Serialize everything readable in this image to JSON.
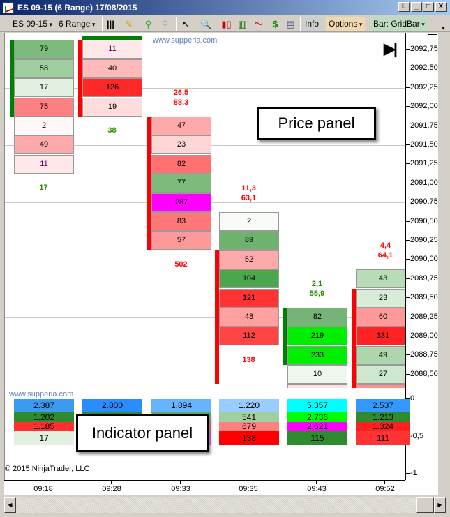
{
  "window": {
    "title": "ES 09-15 (6 Range)  17/08/2015",
    "btn_l": "L",
    "btn_min": "_",
    "btn_max": "□",
    "btn_close": "X"
  },
  "toolbar": {
    "instrument": "ES 09-15",
    "period": "6 Range",
    "info": "Info",
    "options": "Options",
    "bar": "Bar: GridBar",
    "f_button": "F"
  },
  "watermark": "www.supperia.com",
  "copyright": "© 2015 NinjaTrader, LLC",
  "callouts": {
    "price": "Price panel",
    "indicator": "Indicator panel"
  },
  "price_axis": [
    "2092,75",
    "2092,50",
    "2092,25",
    "2092,00",
    "2091,75",
    "2091,50",
    "2091,25",
    "2091,00",
    "2090,75",
    "2090,50",
    "2090,25",
    "2090,00",
    "2089,75",
    "2089,50",
    "2089,25",
    "2089,00",
    "2088,75",
    "2088,50"
  ],
  "indicator_axis": [
    "0",
    "-0,5",
    "-1"
  ],
  "times": [
    "09:18",
    "09:28",
    "09:33",
    "09:35",
    "09:43",
    "09:52"
  ],
  "colors": {
    "green_side": "#008000",
    "red_side": "#ff0000",
    "label_red": "#ff0000",
    "label_green": "#2e8b00"
  },
  "bars": [
    {
      "top": 2092.75,
      "side": "green",
      "sideFrom": 0,
      "sideTo": 3,
      "cells": [
        [
          "79",
          "#7dbb7d"
        ],
        [
          "58",
          "#9fcf9f"
        ],
        [
          "17",
          "#e2f0e2"
        ],
        [
          "75",
          "#ff8080"
        ],
        [
          "2",
          "#fff8f8"
        ],
        [
          "49",
          "#ffaaaa"
        ],
        [
          "11",
          "#ffe8ea"
        ]
      ],
      "above": [],
      "below": "17",
      "labelColor": "green"
    },
    {
      "top": 2092.75,
      "side": "red",
      "sideFrom": 0,
      "sideTo": 3,
      "topStrip": true,
      "cells": [
        [
          "11",
          "#ffe8ea"
        ],
        [
          "40",
          "#ffbbbb"
        ],
        [
          "126",
          "#ff2828"
        ],
        [
          "19",
          "#ffdddd"
        ]
      ],
      "above": [],
      "below": "38",
      "labelColor": "green"
    },
    {
      "top": 2091.75,
      "side": "red",
      "sideFrom": 0,
      "sideTo": 6,
      "cells": [
        [
          "47",
          "#ffaaaa"
        ],
        [
          "23",
          "#ffd6d6"
        ],
        [
          "82",
          "#ff7070"
        ],
        [
          "77",
          "#7dbb7d"
        ],
        [
          "287",
          "#ff00ff"
        ],
        [
          "83",
          "#ff7777"
        ],
        [
          "57",
          "#ff9999"
        ]
      ],
      "above": [
        "26,5",
        "88,3"
      ],
      "below": "502",
      "labelColor": "red"
    },
    {
      "top": 2090.5,
      "side": "red",
      "sideFrom": 2,
      "sideTo": 8,
      "cells": [
        [
          "2",
          "#f8fbf8"
        ],
        [
          "89",
          "#6db26d"
        ],
        [
          "52",
          "#ffaaaa"
        ],
        [
          "104",
          "#4ca64c"
        ],
        [
          "121",
          "#ff3333"
        ],
        [
          "48",
          "#ffa0a0"
        ],
        [
          "112",
          "#ff4444"
        ]
      ],
      "above": [
        "11,3",
        "63,1"
      ],
      "below": "138",
      "labelColor": "red"
    },
    {
      "top": 2089.25,
      "side": "green",
      "sideFrom": 0,
      "sideTo": 2,
      "cells": [
        [
          "82",
          "#76b476"
        ],
        [
          "219",
          "#00ee00"
        ],
        [
          "233",
          "#00ee00"
        ],
        [
          "10",
          "#eef6ee"
        ],
        [
          "",
          "#ffe0e4"
        ]
      ],
      "above": [
        "2,1",
        "55,9"
      ],
      "below": "",
      "labelColor": "green"
    },
    {
      "top": 2089.75,
      "side": "red",
      "sideFrom": 1,
      "sideTo": 7,
      "cells": [
        [
          "43",
          "#b8dcb8"
        ],
        [
          "23",
          "#d8ecd8"
        ],
        [
          "60",
          "#ff9999"
        ],
        [
          "131",
          "#ff2222"
        ],
        [
          "49",
          "#acd6ac"
        ],
        [
          "27",
          "#cfe6cf"
        ],
        [
          "",
          "#ff9090"
        ]
      ],
      "above": [
        "4,4",
        "64,1"
      ],
      "below": "",
      "labelColor": "red"
    }
  ],
  "indicator": [
    [
      [
        "2.387",
        "#3d9bef"
      ],
      [
        "1.202",
        "#2e8b2e"
      ],
      [
        "1.185",
        "#ff3030"
      ],
      [
        "17",
        "#e2f0e2"
      ]
    ],
    [
      [
        "2.800",
        "#2a8cff"
      ],
      [
        "",
        "#2e8b2e"
      ],
      [
        "",
        "#ff3030"
      ],
      [
        "",
        "#ff00ff"
      ]
    ],
    [
      [
        "1.894",
        "#66b3ff"
      ],
      [
        "",
        "#5aaa5a"
      ],
      [
        "",
        "#ff3030"
      ],
      [
        "",
        "#ff00ff"
      ]
    ],
    [
      [
        "1.220",
        "#99ccff"
      ],
      [
        "541",
        "#a0d0a0"
      ],
      [
        "679",
        "#ff8080"
      ],
      [
        "138",
        "#ff0000"
      ]
    ],
    [
      [
        "5.357",
        "#00ffff"
      ],
      [
        "2.736",
        "#00ff00"
      ],
      [
        "2.621",
        "#ff00ff"
      ],
      [
        "115",
        "#2e8b2e"
      ]
    ],
    [
      [
        "2.537",
        "#3399ff"
      ],
      [
        "1.213",
        "#2e8b2e"
      ],
      [
        "1.324",
        "#ff2020"
      ],
      [
        "111",
        "#ff3333"
      ]
    ]
  ]
}
